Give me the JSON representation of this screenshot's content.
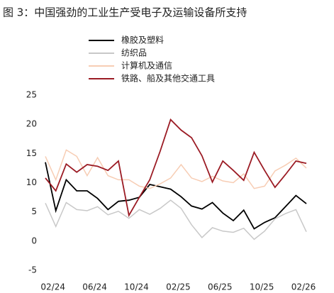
{
  "chart_data": {
    "type": "line",
    "title": "图 3：中国强劲的工业生产受电子及运输设备所支持",
    "categories": [
      null,
      "02/24",
      null,
      null,
      null,
      "06/24",
      null,
      null,
      null,
      "10/24",
      null,
      null,
      null,
      "02/25",
      null,
      null,
      null,
      "06/25",
      null,
      null,
      null,
      "10/25",
      null,
      null,
      null,
      "02/26"
    ],
    "series": [
      {
        "name": "橡胶及塑料",
        "color": "#000000",
        "values": [
          13.5,
          5.2,
          10.5,
          8.6,
          8.6,
          7.3,
          5.4,
          6.8,
          7.0,
          7.5,
          9.7,
          9.3,
          8.9,
          7.6,
          6.0,
          5.5,
          6.6,
          4.8,
          3.5,
          5.3,
          2.1,
          3.2,
          4.0,
          5.9,
          7.8,
          6.4
        ]
      },
      {
        "name": "纺织品",
        "color": "#c8c8c8",
        "values": [
          6.5,
          2.5,
          6.6,
          5.4,
          5.2,
          5.9,
          4.5,
          5.1,
          3.9,
          5.4,
          4.6,
          5.6,
          7.0,
          5.6,
          2.8,
          0.6,
          2.3,
          1.7,
          1.5,
          2.2,
          0.3,
          1.7,
          3.8,
          4.7,
          5.4,
          1.6
        ]
      },
      {
        "name": "计算机及通信",
        "color": "#f7cdb4",
        "values": [
          14.5,
          10.5,
          15.6,
          14.5,
          11.2,
          14.3,
          11.2,
          10.5,
          10.5,
          9.4,
          9.0,
          9.8,
          10.8,
          13.1,
          10.8,
          10.2,
          11.1,
          10.3,
          10.0,
          11.5,
          9.0,
          9.4,
          12.0,
          13.0,
          14.2,
          12.5
        ]
      },
      {
        "name": "铁路、船及其他交通工具",
        "color": "#9b1b24",
        "values": [
          10.8,
          8.6,
          13.2,
          11.8,
          13.1,
          12.8,
          12.1,
          13.7,
          4.4,
          7.5,
          10.5,
          15.4,
          20.8,
          19.0,
          17.7,
          14.6,
          10.1,
          13.7,
          12.1,
          10.4,
          15.2,
          12.1,
          9.2,
          11.4,
          13.7,
          13.3
        ]
      }
    ],
    "ylim": [
      -5,
      25
    ],
    "yticks": [
      -5,
      0,
      5,
      10,
      15,
      20,
      25
    ],
    "grid": false,
    "legend": "top"
  }
}
